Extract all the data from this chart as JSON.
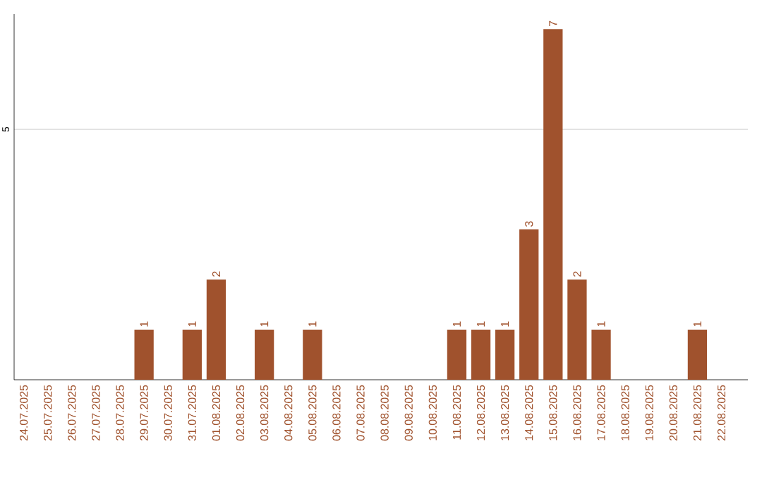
{
  "chart_data": {
    "type": "bar",
    "categories": [
      "24.07.2025",
      "25.07.2025",
      "26.07.2025",
      "27.07.2025",
      "28.07.2025",
      "29.07.2025",
      "30.07.2025",
      "31.07.2025",
      "01.08.2025",
      "02.08.2025",
      "03.08.2025",
      "04.08.2025",
      "05.08.2025",
      "06.08.2025",
      "07.08.2025",
      "08.08.2025",
      "09.08.2025",
      "10.08.2025",
      "11.08.2025",
      "12.08.2025",
      "13.08.2025",
      "14.08.2025",
      "15.08.2025",
      "16.08.2025",
      "17.08.2025",
      "18.08.2025",
      "19.08.2025",
      "20.08.2025",
      "21.08.2025",
      "22.08.2025"
    ],
    "values": [
      0,
      0,
      0,
      0,
      0,
      1,
      0,
      1,
      2,
      0,
      1,
      0,
      1,
      0,
      0,
      0,
      0,
      0,
      1,
      1,
      1,
      3,
      7,
      2,
      1,
      0,
      0,
      0,
      1,
      0
    ],
    "value_labels": [
      null,
      null,
      null,
      null,
      null,
      "1",
      null,
      "1",
      "2",
      null,
      "1",
      null,
      "1",
      null,
      null,
      null,
      null,
      null,
      "1",
      "1",
      "1",
      "3",
      "7",
      "2",
      "1",
      null,
      null,
      null,
      "1",
      null
    ],
    "color": "#a0522d",
    "ylim": [
      0,
      7.3
    ],
    "yticks": [
      5
    ],
    "grid": "y"
  }
}
